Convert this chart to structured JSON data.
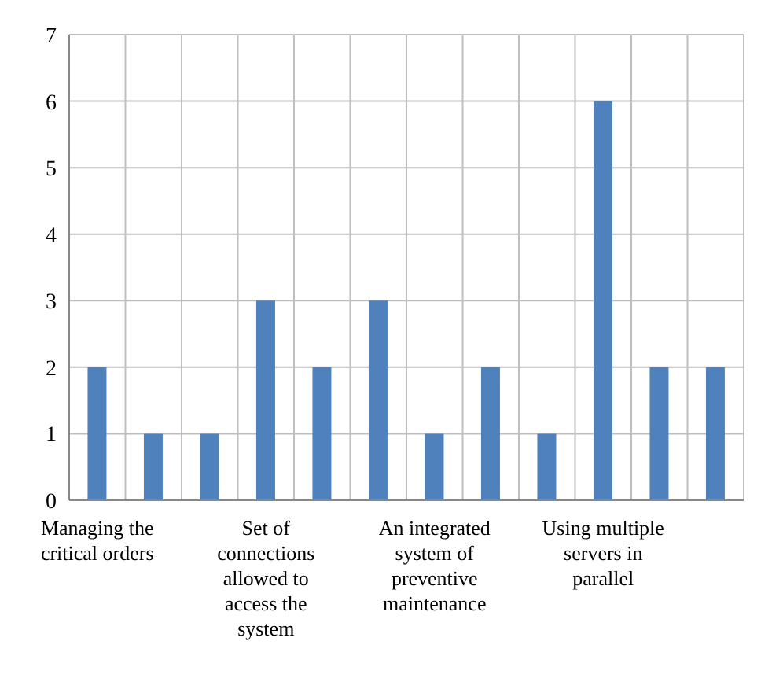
{
  "chart_data": {
    "type": "bar",
    "categories": [
      "Managing the critical orders",
      null,
      null,
      "Set of connections allowed to access the system",
      null,
      null,
      "An integrated system of preventive maintenance",
      null,
      null,
      "Using multiple servers in parallel",
      null,
      null
    ],
    "values": [
      2,
      1,
      1,
      3,
      2,
      3,
      1,
      2,
      1,
      6,
      2,
      2
    ],
    "color": "#4f81bd",
    "ylim": [
      0,
      7
    ],
    "yticks": [
      0,
      1,
      2,
      3,
      4,
      5,
      6,
      7
    ],
    "grid": true
  }
}
